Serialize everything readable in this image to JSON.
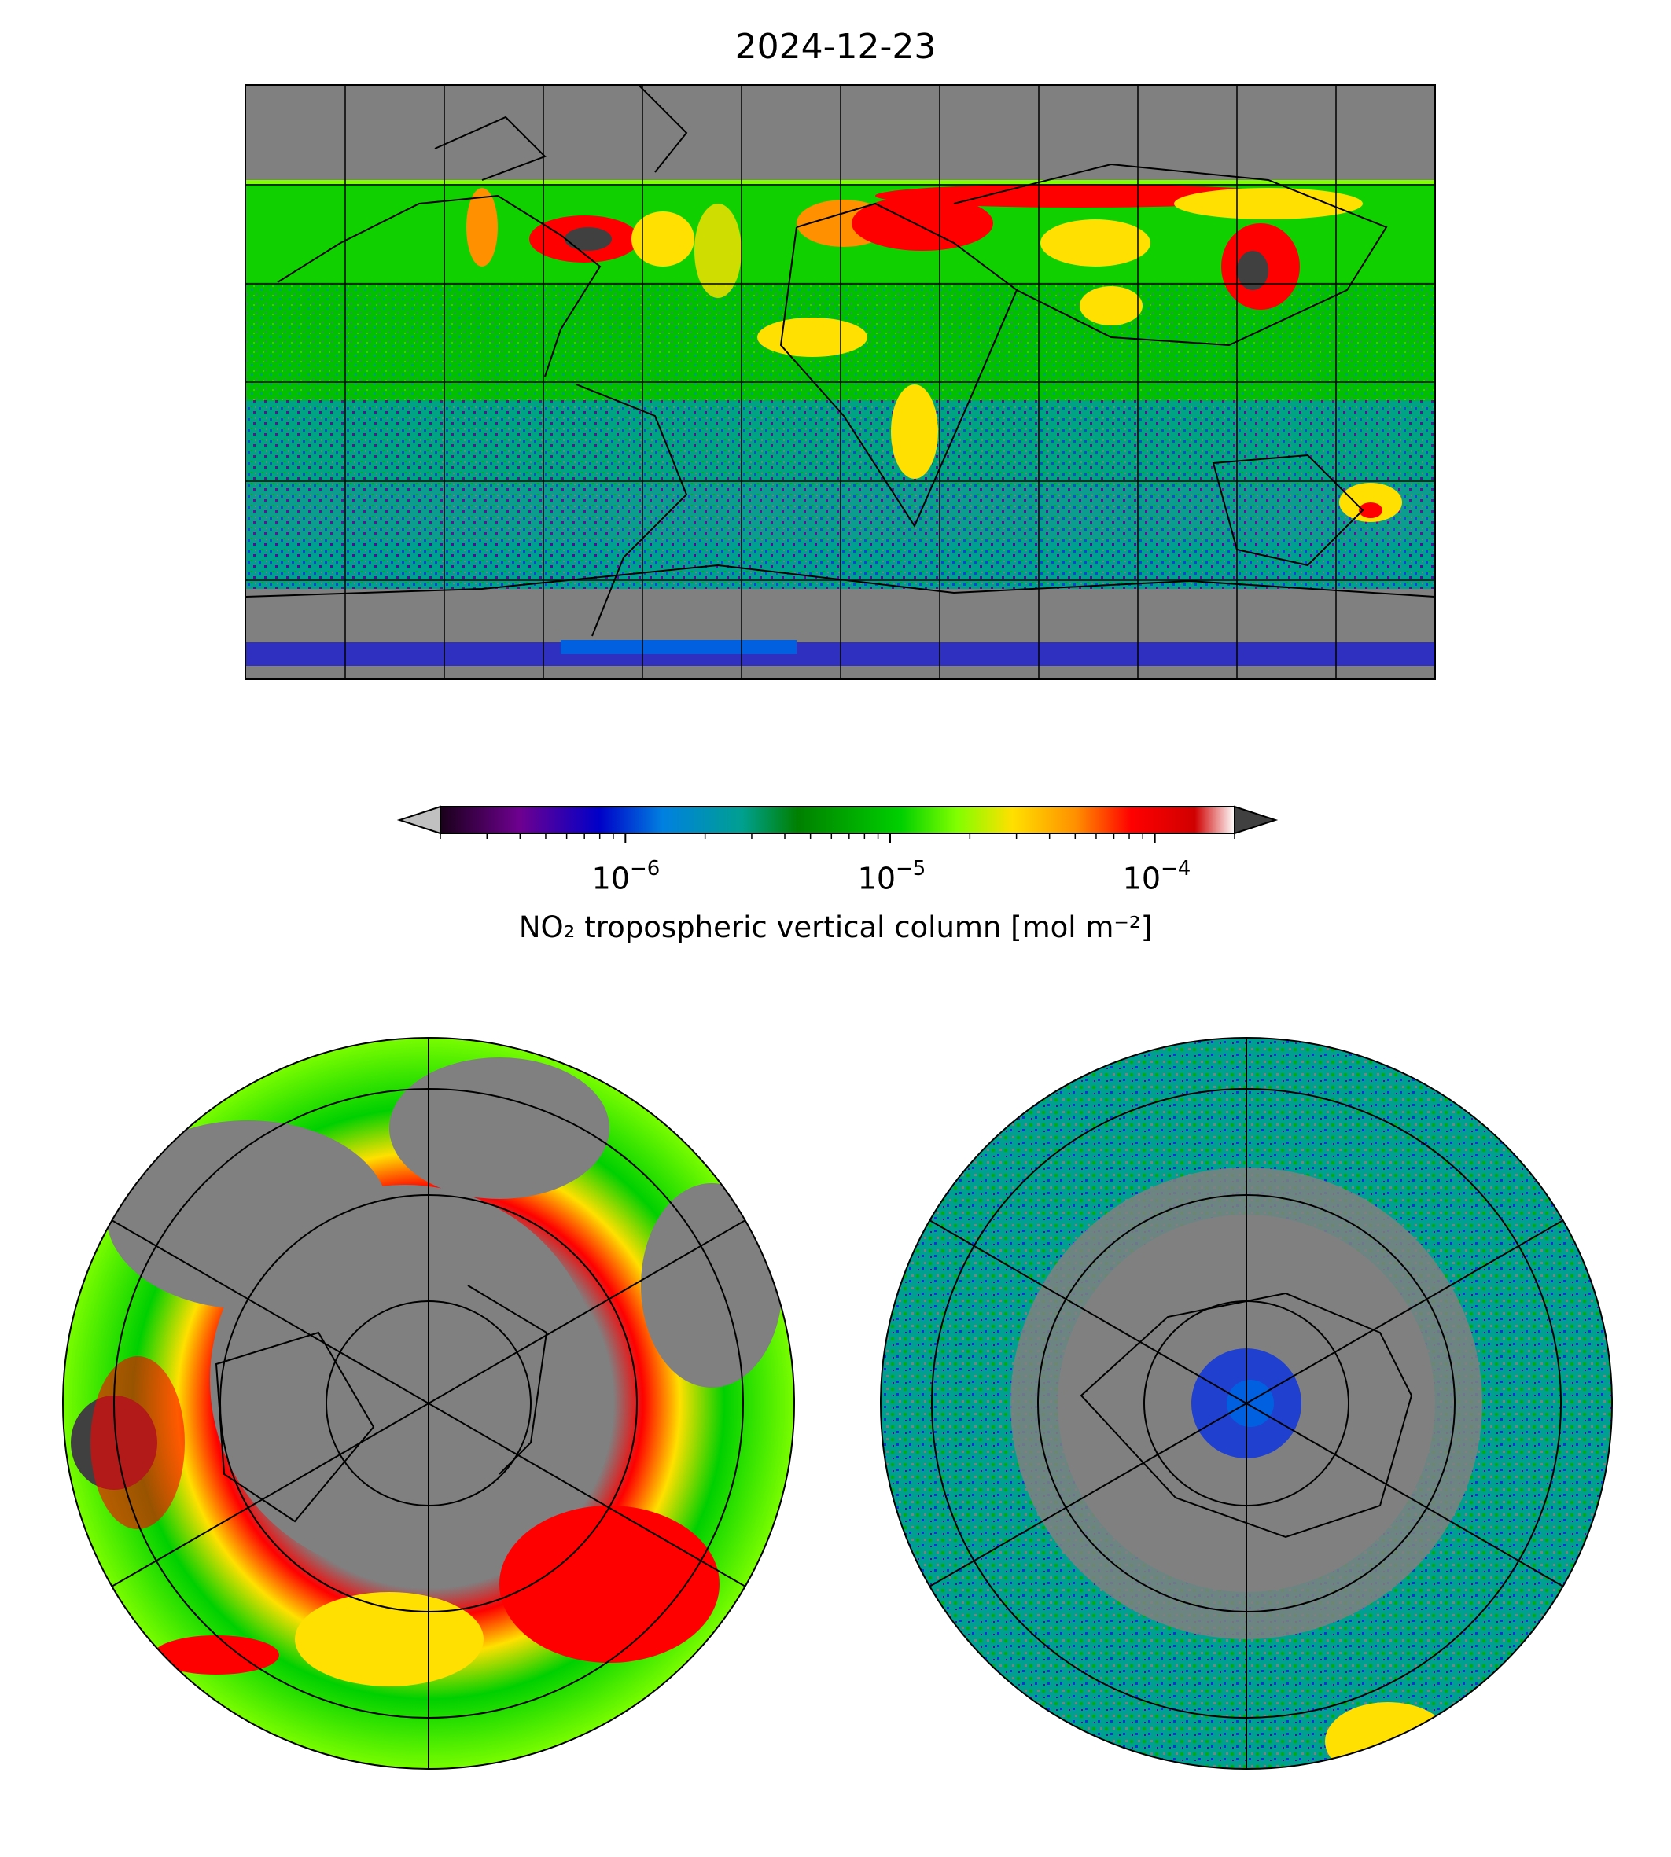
{
  "figure": {
    "title": "2024-12-23"
  },
  "colorbar": {
    "label": "NO₂ tropospheric vertical column [mol m⁻²]",
    "scale": "log",
    "range": [
      2e-07,
      0.0002
    ],
    "extend": "both",
    "major_ticks": [
      {
        "value": 1e-06,
        "base": "10",
        "exp": "−6"
      },
      {
        "value": 1e-05,
        "base": "10",
        "exp": "−5"
      },
      {
        "value": 0.0001,
        "base": "10",
        "exp": "−4"
      }
    ],
    "colors": [
      "#1a001a",
      "#6e0090",
      "#0000c8",
      "#0080e0",
      "#00a090",
      "#008000",
      "#00d000",
      "#80ff00",
      "#ffe000",
      "#ff9000",
      "#ff0000",
      "#d00000",
      "#ffffff"
    ],
    "under_color": "#c0c0c0",
    "over_color": "#404040",
    "missing_color": "#808080"
  },
  "maps": {
    "global": {
      "projection": "plate carree",
      "gridlines": true
    },
    "north_polar": {
      "projection": "north polar stereographic",
      "gridlines": true
    },
    "south_polar": {
      "projection": "south polar stereographic",
      "gridlines": true
    }
  }
}
